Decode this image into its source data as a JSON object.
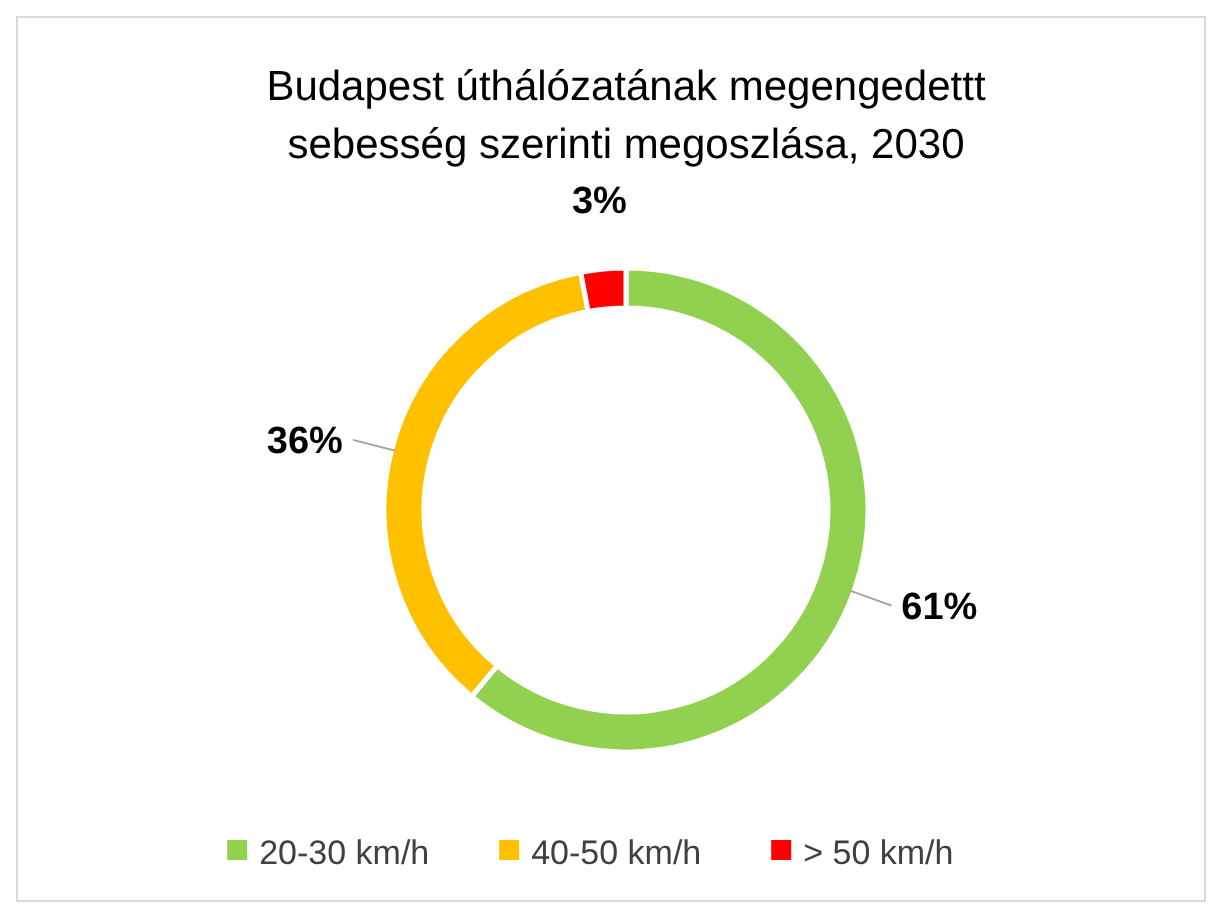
{
  "chart_data": {
    "type": "donut",
    "title": "Budapest úthálózatának megengedettt sebesség szerinti megoszlása, 2030",
    "categories": [
      "20-30 km/h",
      "40-50 km/h",
      "> 50 km/h"
    ],
    "values": [
      61,
      36,
      3
    ],
    "colors": [
      "#92d050",
      "#ffc000",
      "#ff0000"
    ],
    "value_labels": [
      "61%",
      "36%",
      "3%"
    ],
    "legend": "bottom"
  }
}
